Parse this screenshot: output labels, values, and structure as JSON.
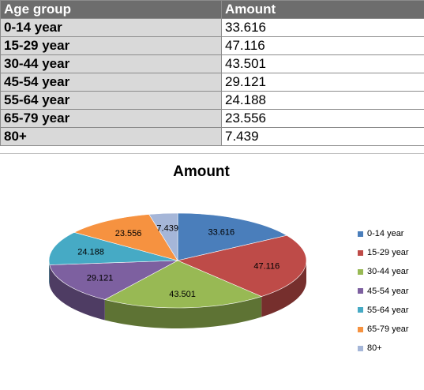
{
  "table": {
    "header": {
      "label": "Age group",
      "value": "Amount"
    },
    "rows": [
      {
        "label": "0-14 year",
        "value": "33.616"
      },
      {
        "label": "15-29 year",
        "value": "47.116"
      },
      {
        "label": "30-44 year",
        "value": "43.501"
      },
      {
        "label": "45-54 year",
        "value": "29.121"
      },
      {
        "label": "55-64 year",
        "value": "24.188"
      },
      {
        "label": "65-79 year",
        "value": "23.556"
      },
      {
        "label": "80+",
        "value": "7.439"
      }
    ]
  },
  "chart_data": {
    "type": "pie",
    "title": "Amount",
    "legend_position": "right",
    "categories": [
      "0-14 year",
      "15-29 year",
      "30-44 year",
      "45-54 year",
      "55-64 year",
      "65-79 year",
      "80+"
    ],
    "values": [
      33.616,
      47.116,
      43.501,
      29.121,
      24.188,
      23.556,
      7.439
    ],
    "data_labels": [
      "33.616",
      "47.116",
      "43.501",
      "29.121",
      "24.188",
      "23.556",
      "7.439"
    ],
    "colors": [
      "#4a7ebb",
      "#be4b48",
      "#98b954",
      "#7d60a0",
      "#46aac5",
      "#f69240",
      "#a5b6d8"
    ]
  }
}
